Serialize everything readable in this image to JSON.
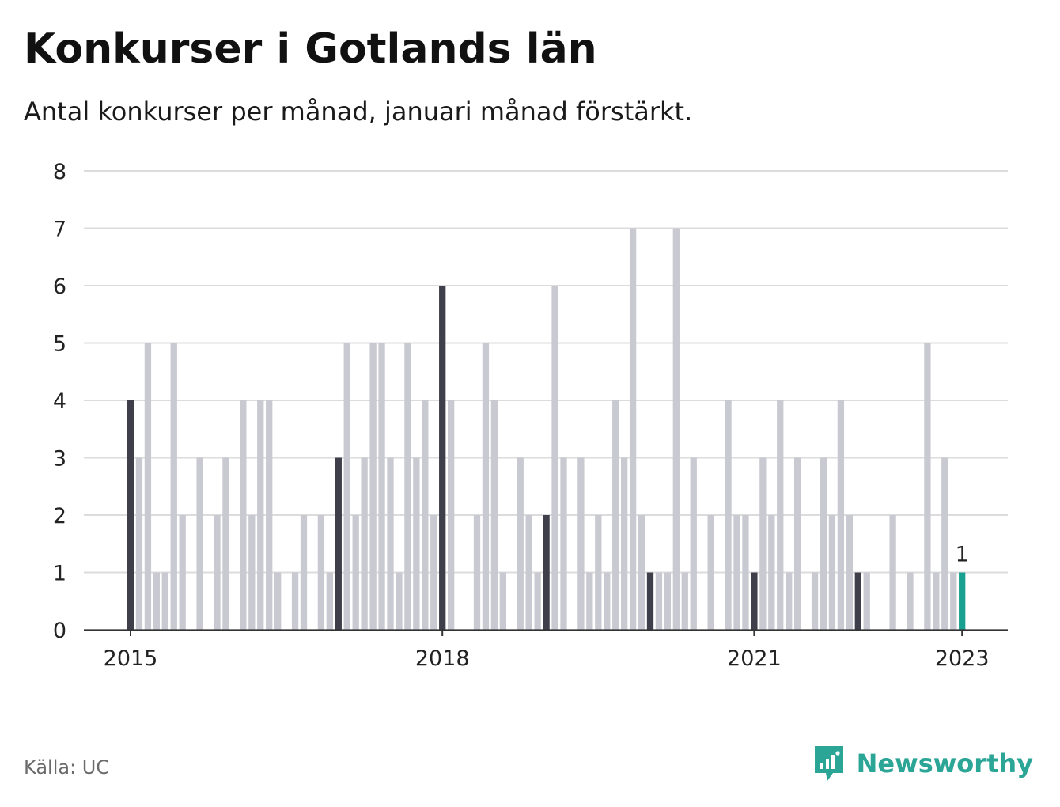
{
  "title": "Konkurser i Gotlands län",
  "subtitle": "Antal konkurser per månad, januari månad förstärkt.",
  "source": "Källa: UC",
  "brand": "Newsworthy",
  "colors": {
    "bar": "#c9c9d1",
    "bar_january": "#3f3f4c",
    "bar_latest": "#1aa090",
    "grid": "#dcdcdc",
    "axis": "#333333"
  },
  "chart_data": {
    "type": "bar",
    "xlabel": "",
    "ylabel": "",
    "ylim": [
      0,
      8
    ],
    "y_ticks": [
      0,
      1,
      2,
      3,
      4,
      5,
      6,
      7,
      8
    ],
    "x_tick_labels": [
      {
        "label": "2015",
        "index": 0
      },
      {
        "label": "2018",
        "index": 36
      },
      {
        "label": "2021",
        "index": 72
      },
      {
        "label": "2023",
        "index": 96
      }
    ],
    "start": "2015-01",
    "values": [
      4,
      3,
      5,
      1,
      1,
      5,
      2,
      0,
      3,
      0,
      2,
      3,
      0,
      4,
      2,
      4,
      4,
      1,
      0,
      1,
      2,
      0,
      2,
      1,
      3,
      5,
      2,
      3,
      5,
      5,
      3,
      1,
      5,
      3,
      4,
      2,
      6,
      4,
      0,
      0,
      2,
      5,
      4,
      1,
      0,
      3,
      2,
      1,
      2,
      6,
      3,
      0,
      3,
      1,
      2,
      1,
      4,
      3,
      7,
      2,
      1,
      1,
      1,
      7,
      1,
      3,
      0,
      2,
      0,
      4,
      2,
      2,
      1,
      3,
      2,
      4,
      1,
      3,
      0,
      1,
      3,
      2,
      4,
      2,
      1,
      1,
      0,
      0,
      2,
      0,
      1,
      0,
      5,
      1,
      3,
      1,
      1
    ],
    "annotations": [
      {
        "index": 96,
        "text": "1"
      }
    ]
  }
}
